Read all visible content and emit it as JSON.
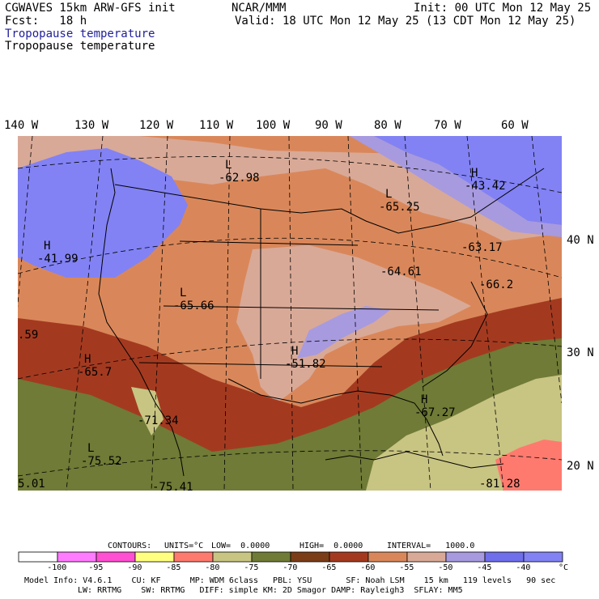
{
  "header": {
    "model_line": "CGWAVES 15km ARW-GFS init",
    "fcst_line": "Fcst:   18 h",
    "org": "NCAR/MMM",
    "init_line": "Init: 00 UTC Mon 12 May 25",
    "valid_line": "Valid: 18 UTC Mon 12 May 25 (13 CDT Mon 12 May 25)",
    "field_title_1": "Tropopause temperature",
    "field_title_2": "Tropopause temperature"
  },
  "colors": {
    "field_title_1": "#1f1f9a",
    "bins": [
      "#ffffff",
      "#ff7bff",
      "#ff4fd2",
      "#ffff80",
      "#ff7a6e",
      "#c8c482",
      "#6f7b36",
      "#7a3d18",
      "#a33a20",
      "#d9875a",
      "#d9a997",
      "#a79adf",
      "#6f6fec",
      "#8282f4"
    ],
    "land_outline": "#000000"
  },
  "longitude_labels": [
    "140 W",
    "130 W",
    "120 W",
    "110 W",
    "100 W",
    "90 W",
    "80 W",
    "70 W",
    "60 W"
  ],
  "latitude_labels": [
    "40 N",
    "30 N",
    "20 N"
  ],
  "extrema": [
    {
      "type": "L",
      "value": "-62.98"
    },
    {
      "type": "L",
      "value": "-65.25"
    },
    {
      "type": "H",
      "value": "-43.42"
    },
    {
      "type": "H",
      "value": "-41.99"
    },
    {
      "type": "L",
      "value": "-65.66"
    },
    {
      "type": "",
      "value": "-63.17"
    },
    {
      "type": "",
      "value": "-64.61"
    },
    {
      "type": "",
      "value": "-66.2"
    },
    {
      "type": "H",
      "value": "-51.82"
    },
    {
      "type": "H",
      "value": "-65.7"
    },
    {
      "type": "",
      "value": "-71.34"
    },
    {
      "type": "H",
      "value": "-67.27"
    },
    {
      "type": "L",
      "value": "-75.52"
    },
    {
      "type": "",
      "value": "-75.41"
    },
    {
      "type": "",
      "value": "-81.28"
    },
    {
      "type": "",
      "value": ".59"
    },
    {
      "type": "",
      "value": "5.01"
    }
  ],
  "contours_line": {
    "label": "CONTOURS:",
    "units": "UNITS=°C",
    "low": "LOW=  0.0000",
    "high": "HIGH=  0.0000",
    "interval": "INTERVAL=   1000.0"
  },
  "colorbar_ticks": [
    "-100",
    "-95",
    "-90",
    "-85",
    "-80",
    "-75",
    "-70",
    "-65",
    "-60",
    "-55",
    "-50",
    "-45",
    "-40"
  ],
  "colorbar_unit": "°C",
  "footer": {
    "line1": "Model Info: V4.6.1    CU: KF      MP: WDM 6class   PBL: YSU       SF: Noah LSM    15 km   119 levels   90 sec",
    "line2": "LW: RRTMG    SW: RRTMG   DIFF: simple KM: 2D Smagor DAMP: Rayleigh3  SFLAY: MM5"
  }
}
